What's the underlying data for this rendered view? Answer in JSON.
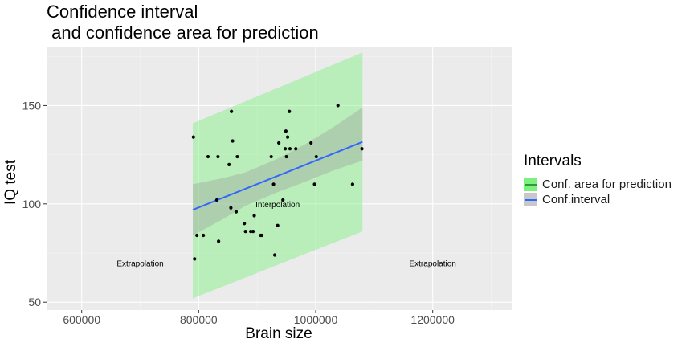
{
  "title": "Confidence interval\n and confidence area for prediction",
  "legend": {
    "title": "Intervals",
    "items": [
      {
        "label": "Conf. area for prediction",
        "fill": "#7df07d",
        "line": "#2f9a3a"
      },
      {
        "label": "Conf.interval",
        "fill": "#c8c8c8",
        "line": "#3366ff"
      }
    ]
  },
  "chart_data": {
    "type": "scatter",
    "xlabel": "Brain size",
    "ylabel": "IQ test",
    "xlim": [
      540000,
      1335000
    ],
    "ylim": [
      46,
      180
    ],
    "x_ticks": [
      600000,
      800000,
      1000000,
      1200000
    ],
    "x_tick_labels": [
      "600000",
      "800000",
      "1000000",
      "1200000"
    ],
    "y_ticks": [
      50,
      100,
      150
    ],
    "y_tick_labels": [
      "50",
      "100",
      "150"
    ],
    "grid": true,
    "background": "#ebebeb",
    "points": [
      {
        "x": 791000,
        "y": 134
      },
      {
        "x": 793000,
        "y": 72
      },
      {
        "x": 797000,
        "y": 84
      },
      {
        "x": 808000,
        "y": 84
      },
      {
        "x": 816000,
        "y": 124
      },
      {
        "x": 831000,
        "y": 102
      },
      {
        "x": 833000,
        "y": 124
      },
      {
        "x": 834000,
        "y": 81
      },
      {
        "x": 852000,
        "y": 120
      },
      {
        "x": 855000,
        "y": 98
      },
      {
        "x": 856000,
        "y": 147
      },
      {
        "x": 858000,
        "y": 132
      },
      {
        "x": 864000,
        "y": 96
      },
      {
        "x": 866000,
        "y": 124
      },
      {
        "x": 878000,
        "y": 90
      },
      {
        "x": 880000,
        "y": 86
      },
      {
        "x": 889000,
        "y": 86
      },
      {
        "x": 893000,
        "y": 86
      },
      {
        "x": 895000,
        "y": 94
      },
      {
        "x": 906000,
        "y": 84
      },
      {
        "x": 908000,
        "y": 84
      },
      {
        "x": 924000,
        "y": 124
      },
      {
        "x": 928000,
        "y": 110
      },
      {
        "x": 930000,
        "y": 74
      },
      {
        "x": 935000,
        "y": 89
      },
      {
        "x": 937000,
        "y": 131
      },
      {
        "x": 944000,
        "y": 102
      },
      {
        "x": 948000,
        "y": 128
      },
      {
        "x": 949000,
        "y": 137
      },
      {
        "x": 950000,
        "y": 124
      },
      {
        "x": 952000,
        "y": 134
      },
      {
        "x": 955000,
        "y": 147
      },
      {
        "x": 956000,
        "y": 128
      },
      {
        "x": 966000,
        "y": 128
      },
      {
        "x": 992000,
        "y": 131
      },
      {
        "x": 998000,
        "y": 110
      },
      {
        "x": 1001000,
        "y": 124
      },
      {
        "x": 1038000,
        "y": 150
      },
      {
        "x": 1063000,
        "y": 110
      },
      {
        "x": 1079000,
        "y": 128
      }
    ],
    "fit_line": {
      "x": [
        790000,
        1080000
      ],
      "y": [
        97,
        131.5
      ]
    },
    "confidence_interval": {
      "x": [
        790000,
        840000,
        880000,
        935000,
        980000,
        1030000,
        1080000
      ],
      "lower": [
        84,
        92,
        99,
        106,
        111,
        117,
        122
      ],
      "upper": [
        110,
        113,
        116,
        123,
        130,
        139,
        149
      ]
    },
    "prediction_area": {
      "x": [
        790000,
        1080000
      ],
      "lower": [
        52,
        86
      ],
      "upper": [
        141,
        177
      ]
    },
    "annotations": [
      {
        "text": "Extrapolation",
        "x": 700000,
        "y": 70
      },
      {
        "text": "Interpolation",
        "x": 935000,
        "y": 100
      },
      {
        "text": "Extrapolation",
        "x": 1200000,
        "y": 70
      }
    ]
  }
}
